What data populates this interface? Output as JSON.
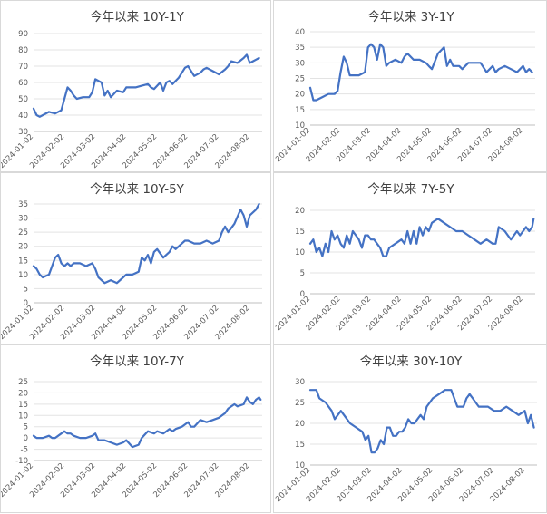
{
  "colors": {
    "line": "#4472c4",
    "grid": "#e3e3e3",
    "text": "#595959"
  },
  "x_ticks": [
    "2024-01-02",
    "2024-02-02",
    "2024-03-02",
    "2024-04-02",
    "2024-05-02",
    "2024-06-02",
    "2024-07-02",
    "2024-08-02"
  ],
  "chart_data": [
    {
      "type": "line",
      "title": "今年以来 10Y-1Y",
      "ylim": [
        30,
        90
      ],
      "yticks": [
        30,
        40,
        50,
        60,
        70,
        80,
        90
      ],
      "xlim": [
        0,
        7.4
      ],
      "grid": true,
      "legend": "none",
      "x": [
        0,
        0.1,
        0.2,
        0.3,
        0.5,
        0.7,
        0.9,
        1.1,
        1.2,
        1.3,
        1.4,
        1.6,
        1.8,
        1.9,
        2.0,
        2.1,
        2.2,
        2.3,
        2.4,
        2.5,
        2.6,
        2.7,
        2.9,
        3.0,
        3.1,
        3.3,
        3.5,
        3.7,
        3.8,
        3.9,
        4.0,
        4.1,
        4.2,
        4.3,
        4.4,
        4.5,
        4.7,
        4.9,
        5.0,
        5.1,
        5.2,
        5.4,
        5.5,
        5.6,
        5.8,
        6.0,
        6.2,
        6.3,
        6.4,
        6.6,
        6.8,
        6.9,
        7.0,
        7.1,
        7.2,
        7.3
      ],
      "values": [
        44,
        40,
        39,
        40,
        42,
        41,
        43,
        57,
        55,
        52,
        50,
        51,
        51,
        54,
        62,
        61,
        60,
        52,
        55,
        51,
        53,
        55,
        54,
        57,
        57,
        57,
        58,
        59,
        57,
        56,
        58,
        60,
        55,
        60,
        61,
        59,
        63,
        69,
        70,
        67,
        64,
        66,
        68,
        69,
        67,
        65,
        68,
        70,
        73,
        72,
        75,
        77,
        72,
        73,
        74,
        75
      ]
    },
    {
      "type": "line",
      "title": "今年以来 3Y-1Y",
      "ylim": [
        10,
        40
      ],
      "yticks": [
        10,
        15,
        20,
        25,
        30,
        35,
        40
      ],
      "xlim": [
        0,
        7.4
      ],
      "grid": true,
      "legend": "none",
      "x": [
        0,
        0.1,
        0.2,
        0.4,
        0.6,
        0.8,
        0.9,
        1.0,
        1.1,
        1.2,
        1.3,
        1.4,
        1.6,
        1.8,
        1.9,
        2.0,
        2.1,
        2.2,
        2.3,
        2.4,
        2.5,
        2.6,
        2.8,
        3.0,
        3.1,
        3.2,
        3.4,
        3.6,
        3.8,
        3.9,
        4.0,
        4.2,
        4.4,
        4.5,
        4.6,
        4.7,
        4.9,
        5.0,
        5.2,
        5.4,
        5.6,
        5.8,
        6.0,
        6.1,
        6.2,
        6.4,
        6.6,
        6.8,
        7.0,
        7.1,
        7.2,
        7.3
      ],
      "values": [
        22,
        18,
        18,
        19,
        20,
        20,
        21,
        27,
        32,
        30,
        26,
        26,
        26,
        27,
        35,
        36,
        35,
        31,
        36,
        35,
        29,
        30,
        31,
        30,
        32,
        33,
        31,
        31,
        30,
        29,
        28,
        33,
        35,
        29,
        31,
        29,
        29,
        28,
        30,
        30,
        30,
        27,
        29,
        27,
        28,
        29,
        28,
        27,
        29,
        27,
        28,
        27
      ]
    },
    {
      "type": "line",
      "title": "今年以来 10Y-5Y",
      "ylim": [
        0,
        35
      ],
      "yticks": [
        0,
        5,
        10,
        15,
        20,
        25,
        30,
        35
      ],
      "xlim": [
        0,
        7.4
      ],
      "grid": true,
      "legend": "none",
      "x": [
        0,
        0.1,
        0.2,
        0.3,
        0.5,
        0.7,
        0.8,
        0.9,
        1.0,
        1.1,
        1.2,
        1.3,
        1.5,
        1.7,
        1.9,
        2.0,
        2.1,
        2.3,
        2.5,
        2.7,
        2.9,
        3.0,
        3.2,
        3.4,
        3.5,
        3.6,
        3.7,
        3.8,
        3.9,
        4.0,
        4.2,
        4.4,
        4.5,
        4.6,
        4.8,
        4.9,
        5.0,
        5.2,
        5.4,
        5.6,
        5.8,
        6.0,
        6.1,
        6.2,
        6.3,
        6.5,
        6.7,
        6.8,
        6.9,
        7.0,
        7.2,
        7.3
      ],
      "values": [
        13,
        12,
        10,
        9,
        10,
        16,
        17,
        14,
        13,
        14,
        13,
        14,
        14,
        13,
        14,
        12,
        9,
        7,
        8,
        7,
        9,
        10,
        10,
        11,
        16,
        15,
        17,
        14,
        18,
        19,
        16,
        18,
        20,
        19,
        21,
        22,
        22,
        21,
        21,
        22,
        21,
        22,
        25,
        27,
        25,
        28,
        33,
        31,
        27,
        31,
        33,
        35
      ]
    },
    {
      "type": "line",
      "title": "今年以来 7Y-5Y",
      "ylim": [
        0,
        20
      ],
      "yticks": [
        0,
        5,
        10,
        15,
        20
      ],
      "xlim": [
        0,
        7.4
      ],
      "grid": true,
      "legend": "none",
      "x": [
        0,
        0.1,
        0.2,
        0.3,
        0.4,
        0.5,
        0.6,
        0.7,
        0.8,
        0.9,
        1.0,
        1.1,
        1.2,
        1.3,
        1.4,
        1.5,
        1.6,
        1.7,
        1.8,
        1.9,
        2.0,
        2.1,
        2.2,
        2.3,
        2.4,
        2.5,
        2.6,
        2.8,
        3.0,
        3.1,
        3.2,
        3.3,
        3.4,
        3.5,
        3.6,
        3.7,
        3.8,
        3.9,
        4.0,
        4.2,
        4.4,
        4.6,
        4.8,
        5.0,
        5.2,
        5.4,
        5.6,
        5.8,
        6.0,
        6.1,
        6.2,
        6.4,
        6.5,
        6.6,
        6.8,
        6.9,
        7.0,
        7.1,
        7.2,
        7.3,
        7.35
      ],
      "values": [
        12,
        13,
        10,
        11,
        9,
        12,
        10,
        15,
        13,
        14,
        12,
        11,
        14,
        12,
        15,
        14,
        13,
        11,
        14,
        14,
        13,
        13,
        12,
        11,
        9,
        9,
        11,
        12,
        13,
        12,
        15,
        12,
        15,
        12,
        16,
        14,
        16,
        15,
        17,
        18,
        17,
        16,
        15,
        15,
        14,
        13,
        12,
        13,
        12,
        12,
        16,
        15,
        14,
        13,
        15,
        14,
        15,
        16,
        15,
        16,
        18
      ]
    },
    {
      "type": "line",
      "title": "今年以来 10Y-7Y",
      "ylim": [
        -10,
        25
      ],
      "yticks": [
        -10,
        -5,
        0,
        5,
        10,
        15,
        20,
        25
      ],
      "xlim": [
        0,
        7.4
      ],
      "grid": true,
      "legend": "none",
      "x": [
        0,
        0.1,
        0.2,
        0.3,
        0.5,
        0.6,
        0.7,
        0.9,
        1.0,
        1.1,
        1.2,
        1.3,
        1.5,
        1.7,
        1.9,
        2.0,
        2.1,
        2.3,
        2.5,
        2.7,
        2.9,
        3.0,
        3.2,
        3.4,
        3.5,
        3.7,
        3.9,
        4.0,
        4.2,
        4.4,
        4.5,
        4.6,
        4.8,
        5.0,
        5.1,
        5.2,
        5.4,
        5.6,
        5.8,
        6.0,
        6.1,
        6.2,
        6.3,
        6.4,
        6.5,
        6.6,
        6.8,
        6.9,
        7.0,
        7.1,
        7.2,
        7.3,
        7.35
      ],
      "values": [
        1,
        0,
        0,
        0,
        1,
        0,
        0,
        2,
        3,
        2,
        2,
        1,
        0,
        0,
        1,
        2,
        -1,
        -1,
        -2,
        -3,
        -2,
        -1,
        -4,
        -3,
        0,
        3,
        2,
        3,
        2,
        4,
        3,
        4,
        5,
        7,
        5,
        5,
        8,
        7,
        8,
        9,
        10,
        11,
        13,
        14,
        15,
        14,
        15,
        18,
        16,
        15,
        17,
        18,
        17
      ]
    },
    {
      "type": "line",
      "title": "今年以来 30Y-10Y",
      "ylim": [
        10,
        30
      ],
      "yticks": [
        10,
        15,
        20,
        25,
        30
      ],
      "xlim": [
        0,
        7.4
      ],
      "grid": true,
      "legend": "none",
      "x": [
        0,
        0.1,
        0.2,
        0.3,
        0.5,
        0.7,
        0.8,
        1.0,
        1.1,
        1.3,
        1.5,
        1.7,
        1.8,
        1.9,
        2.0,
        2.1,
        2.2,
        2.3,
        2.4,
        2.5,
        2.6,
        2.7,
        2.8,
        2.9,
        3.0,
        3.1,
        3.2,
        3.3,
        3.4,
        3.5,
        3.6,
        3.7,
        3.8,
        3.9,
        4.0,
        4.2,
        4.4,
        4.6,
        4.8,
        5.0,
        5.1,
        5.2,
        5.3,
        5.4,
        5.5,
        5.6,
        5.8,
        6.0,
        6.2,
        6.4,
        6.6,
        6.8,
        7.0,
        7.1,
        7.2,
        7.3
      ],
      "values": [
        28,
        28,
        28,
        26,
        25,
        23,
        21,
        23,
        22,
        20,
        19,
        18,
        16,
        17,
        13,
        13,
        14,
        16,
        15,
        19,
        19,
        17,
        17,
        18,
        18,
        19,
        21,
        20,
        20,
        21,
        22,
        21,
        24,
        25,
        26,
        27,
        28,
        28,
        24,
        24,
        26,
        27,
        26,
        25,
        24,
        24,
        24,
        23,
        23,
        24,
        23,
        22,
        23,
        20,
        22,
        19
      ]
    }
  ]
}
